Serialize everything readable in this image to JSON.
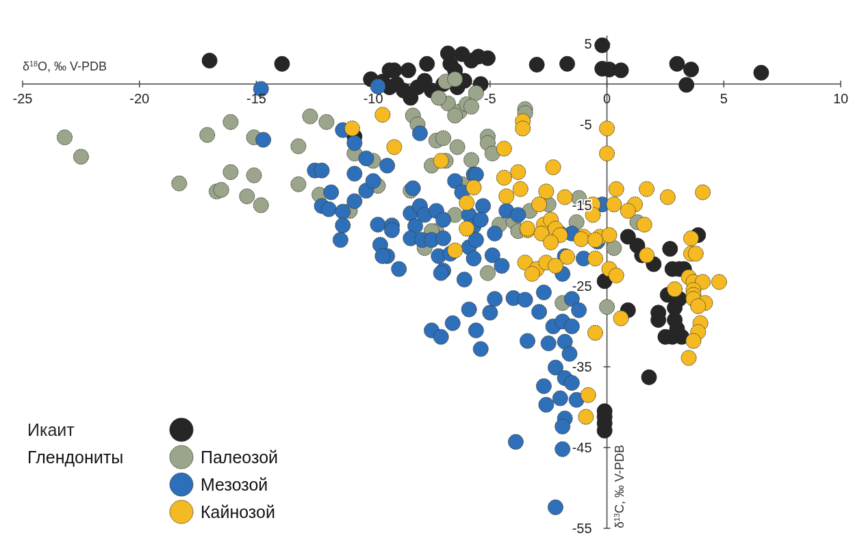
{
  "chart_data": {
    "type": "scatter",
    "xlabel": "δ$^{18}$O, ‰ V-PDB",
    "ylabel": "δ$^{13}$C, ‰ V-PDB",
    "legend_title": "Глендониты",
    "legend": "bottom left",
    "marker": "circle",
    "grid": false,
    "xlim": [
      -25,
      10
    ],
    "xticks": [
      -25,
      -20,
      -15,
      -10,
      -5,
      0,
      5,
      10
    ],
    "ylim": [
      -55,
      6
    ],
    "yticks": [
      5,
      -5,
      -15,
      -25,
      -35,
      -45,
      -55
    ],
    "series": [
      {
        "name": "Икаит",
        "color": "#262626",
        "x": [
          -17.0,
          -13.9,
          -10.1,
          -9.3,
          -9.1,
          -8.5,
          -7.7,
          -6.8,
          -6.2,
          -5.8,
          -5.5,
          -5.1,
          -6.7,
          -5.4,
          -3.0,
          -1.7,
          -0.2,
          -0.2,
          0.1,
          0.6,
          3.0,
          3.6,
          3.4,
          6.6,
          -9.6,
          -9.3,
          -9.0,
          -8.7,
          -8.4,
          -8.1,
          -7.8,
          -7.5,
          -7.0,
          -6.5,
          -6.1,
          -6.4,
          -10.8,
          0.9,
          1.3,
          1.5,
          2.0,
          2.7,
          2.8,
          3.1,
          3.3,
          3.9,
          2.6,
          3.1,
          2.9,
          2.9,
          3.0,
          3.2,
          2.5,
          2.8,
          2.2,
          2.2,
          0.9,
          -0.1,
          1.8,
          -0.1,
          -0.1,
          -0.1,
          -0.1
        ],
        "values": [
          2.9,
          2.5,
          0.6,
          1.7,
          1.7,
          1.7,
          2.5,
          3.8,
          3.7,
          2.9,
          3.4,
          3.2,
          2.5,
          0,
          2.4,
          2.5,
          4.8,
          1.9,
          1.8,
          1.7,
          2.5,
          1.8,
          -0.1,
          1.4,
          0.3,
          -0.4,
          0,
          -0.8,
          -1.7,
          -0.4,
          0.4,
          -0.8,
          0,
          1.7,
          0.4,
          -0.4,
          -6.5,
          -18.9,
          -20.0,
          -21.2,
          -22.3,
          -20.4,
          -22.9,
          -22.9,
          -22.9,
          -18.7,
          -26.1,
          -26.6,
          -27.7,
          -29.2,
          -30.3,
          -31.3,
          -31.3,
          -31.3,
          -28.3,
          -29.2,
          -28.0,
          -24.4,
          -36.3,
          -40.5,
          -41.2,
          -42.0,
          -42.9
        ]
      },
      {
        "name": "Палеозой",
        "color": "#9aa58c",
        "x": [
          -23.2,
          -22.5,
          -18.3,
          -17.1,
          -16.1,
          -15.1,
          -16.1,
          -15.1,
          -16.7,
          -16.5,
          -15.4,
          -14.8,
          -12.7,
          -12.0,
          -13.2,
          -13.2,
          -12.3,
          -10.8,
          -10.0,
          -9.8,
          -11.0,
          -8.3,
          -8.1,
          -8.4,
          -7.3,
          -7.0,
          -6.4,
          -5.8,
          -7.5,
          -6.9,
          -6.2,
          -6.5,
          -7.3,
          -7.5,
          -7.8,
          -6.9,
          -6.5,
          -6.8,
          -6.3,
          -6.0,
          -6.5,
          -7.2,
          -5.6,
          -5.8,
          -3.5,
          -3.5,
          -5.1,
          -5.1,
          -4.9,
          -3.3,
          -2.5,
          -1.2,
          -1.3,
          -4.6,
          -4.0,
          -3.8,
          -5.1,
          1.3,
          0.3,
          0,
          -1.9
        ],
        "values": [
          -6.6,
          -9.0,
          -12.3,
          -6.3,
          -4.7,
          -6.6,
          -10.9,
          -11.3,
          -13.3,
          -13.1,
          -13.9,
          -15.0,
          -4.0,
          -4.7,
          -7.7,
          -12.4,
          -13.7,
          -8.6,
          -9.5,
          -12.6,
          -15.7,
          -3.9,
          -5.0,
          -13.2,
          -7.0,
          -6.7,
          -7.8,
          -9.4,
          -10.1,
          -9.5,
          -12.4,
          -16.2,
          -18.2,
          -18.2,
          -20.3,
          0.3,
          0.6,
          -2.4,
          -3.4,
          -2.5,
          -3.9,
          -1.7,
          -1.1,
          -2.8,
          -3.1,
          -3.6,
          -6.5,
          -7.3,
          -8.6,
          -15.7,
          -14.9,
          -14.1,
          -17.1,
          -17.4,
          -17.0,
          -18.2,
          -23.4,
          -17.1,
          -20.3,
          -27.6,
          -27.1
        ]
      },
      {
        "name": "Мезозой",
        "color": "#2e6fba",
        "x": [
          -14.8,
          -14.7,
          -9.8,
          -11.3,
          -10.8,
          -12.5,
          -12.2,
          -10.8,
          -10.3,
          -9.4,
          -11.8,
          -12.2,
          -11.9,
          -11.3,
          -10.8,
          -10.3,
          -10.0,
          -11.3,
          -11.4,
          -9.8,
          -9.2,
          -9.2,
          -9.7,
          -9.4,
          -8.9,
          -8.0,
          -8.3,
          -8.4,
          -8.0,
          -7.8,
          -7.3,
          -7.0,
          -8.2,
          -8.4,
          -7.9,
          -7.5,
          -7.0,
          -7.2,
          -6.7,
          -7.0,
          -6.5,
          -6.2,
          -5.7,
          -5.9,
          -5.7,
          -5.9,
          -5.7,
          -5.6,
          -5.3,
          -4.3,
          -5.4,
          -4.8,
          -3.8,
          -0.2,
          -1.5,
          -9.6,
          -7.1,
          -6.1,
          -5.6,
          -4.9,
          -4.5,
          -5.9,
          -5.0,
          -4.8,
          -4.0,
          -3.5,
          -6.6,
          -7.5,
          -7.1,
          -5.6,
          -5.4,
          -3.4,
          -2.5,
          -2.9,
          -2.7,
          -2.3,
          -1.9,
          -1.5,
          -1.8,
          -1.6,
          -2.2,
          -1.8,
          -2.7,
          -2.6,
          -2.0,
          -1.3,
          -1.5,
          -1.8,
          -1.9,
          -3.9,
          -1.9,
          -2.2,
          -1.5,
          -1.2,
          -1.9,
          -1.8,
          -1.0,
          -0.4,
          -2.0
        ],
        "values": [
          -0.6,
          -6.9,
          -0.3,
          -5.7,
          -7.3,
          -10.7,
          -10.7,
          -11.1,
          -9.2,
          -10.1,
          -13.4,
          -15.1,
          -15.5,
          -15.8,
          -14.5,
          -13.2,
          -12.0,
          -17.5,
          -19.3,
          -17.4,
          -17.5,
          -18.1,
          -19.9,
          -21.3,
          -22.9,
          -6.1,
          -12.9,
          -16.0,
          -15.1,
          -16.2,
          -15.7,
          -16.8,
          -17.6,
          -19.1,
          -19.3,
          -19.3,
          -19.1,
          -21.3,
          -21.0,
          -23.1,
          -12.0,
          -13.4,
          -11.2,
          -16.2,
          -17.6,
          -20.2,
          -21.6,
          -11.2,
          -15.1,
          -15.7,
          -16.8,
          -18.5,
          -16.2,
          -14.9,
          -18.5,
          -21.3,
          -23.4,
          -24.2,
          -19.3,
          -21.2,
          -22.5,
          -27.9,
          -28.3,
          -26.6,
          -26.5,
          -26.7,
          -29.6,
          -30.5,
          -31.3,
          -30.5,
          -32.8,
          -31.8,
          -32.1,
          -28.2,
          -25.8,
          -30.0,
          -29.4,
          -30.0,
          -31.9,
          -33.4,
          -35.1,
          -36.4,
          -37.4,
          -39.7,
          -38.9,
          -39.1,
          -37.0,
          -41.4,
          -42.4,
          -44.3,
          -45.2,
          -52.4,
          -26.6,
          -28.0,
          -23.5,
          -21.3,
          -21.6,
          -19.5,
          -18.5
        ]
      },
      {
        "name": "Кайнозой",
        "color": "#f5b921",
        "x": [
          -10.9,
          -9.6,
          -9.1,
          -7.1,
          -5.7,
          -6.0,
          -6.0,
          -6.5,
          -3.6,
          -3.6,
          -4.4,
          -3.8,
          -4.4,
          -2.3,
          -3.7,
          -4.3,
          -2.6,
          -2.9,
          -1.8,
          -0.6,
          -0.6,
          0.3,
          0,
          0,
          -3.4,
          -2.7,
          -2.4,
          -2.2,
          -2.0,
          -1.0,
          -0.3,
          0.1,
          0.4,
          1.2,
          1.7,
          2.6,
          4.1,
          0.9,
          1.6,
          1.7,
          3.6,
          3.6,
          3.8,
          0.1,
          0.4,
          2.9,
          3.5,
          3.7,
          4.1,
          4.8,
          3.7,
          3.7,
          3.7,
          4.2,
          3.9,
          0.6,
          4.0,
          3.9,
          3.7,
          3.5,
          -3.5,
          -3.0,
          -3.2,
          -2.6,
          -2.2,
          -1.7,
          -1.1,
          -0.5,
          -0.5,
          -2.8,
          -2.4,
          -3.4,
          -0.5,
          -0.8,
          -0.9
        ],
        "values": [
          -5.5,
          -3.8,
          -7.8,
          -9.5,
          -12.8,
          -14.7,
          -17.9,
          -20.6,
          -4.6,
          -5.5,
          -8.0,
          -10.9,
          -11.6,
          -10.3,
          -13.0,
          -13.9,
          -13.3,
          -14.9,
          -14.0,
          -14.9,
          -16.2,
          -14.9,
          -5.5,
          -8.6,
          -18.1,
          -17.4,
          -16.8,
          -17.9,
          -18.7,
          -18.9,
          -18.9,
          -18.7,
          -13.0,
          -14.9,
          -13.0,
          -14.0,
          -13.4,
          -15.7,
          -17.4,
          -21.2,
          -19.1,
          -21.0,
          -21.0,
          -22.9,
          -23.7,
          -25.4,
          -23.9,
          -24.5,
          -24.5,
          -24.5,
          -25.5,
          -26.1,
          -26.6,
          -27.1,
          -27.5,
          -29.0,
          -29.6,
          -30.7,
          -31.8,
          -33.9,
          -22.1,
          -22.9,
          -23.5,
          -22.1,
          -22.5,
          -21.4,
          -19.2,
          -19.3,
          -21.6,
          -18.5,
          -19.6,
          -17.9,
          -30.8,
          -38.5,
          -41.2
        ]
      }
    ]
  }
}
